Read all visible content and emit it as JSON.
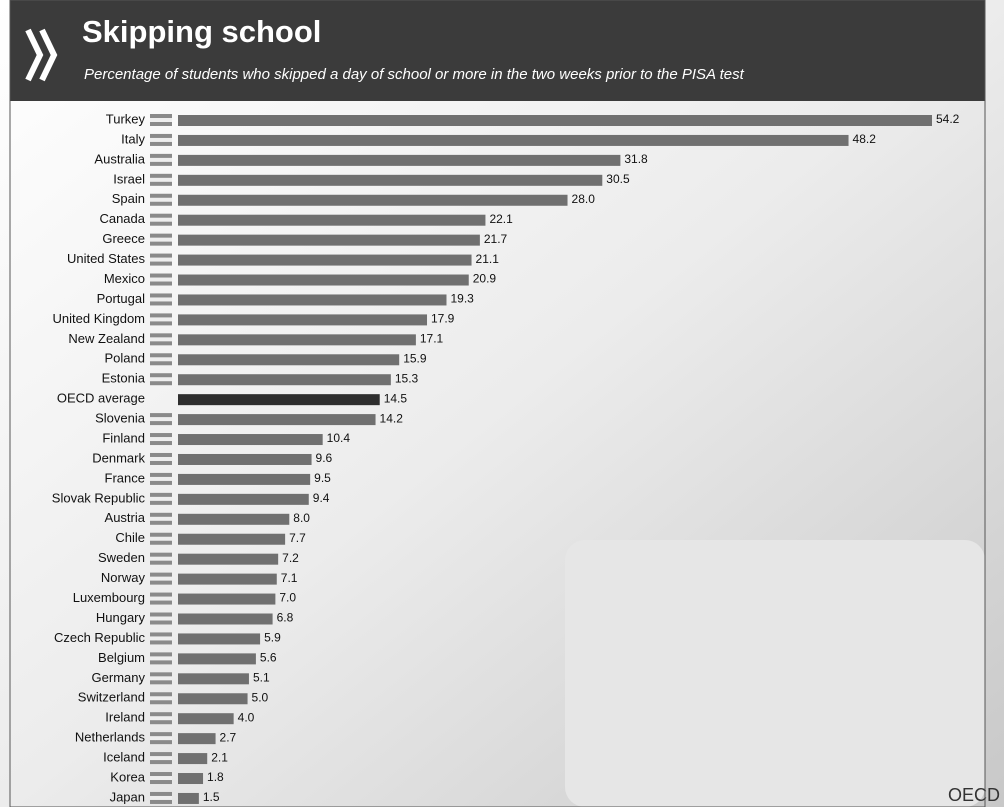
{
  "chart_data": {
    "type": "bar",
    "orientation": "horizontal",
    "title": "Skipping school",
    "subtitle": "Percentage of students who skipped a day of school or more in the two weeks prior to the PISA test",
    "source": "OECD",
    "categories": [
      "Turkey",
      "Italy",
      "Australia",
      "Israel",
      "Spain",
      "Canada",
      "Greece",
      "United States",
      "Mexico",
      "Portugal",
      "United Kingdom",
      "New Zealand",
      "Poland",
      "Estonia",
      "OECD average",
      "Slovenia",
      "Finland",
      "Denmark",
      "France",
      "Slovak Republic",
      "Austria",
      "Chile",
      "Sweden",
      "Norway",
      "Luxembourg",
      "Hungary",
      "Czech Republic",
      "Belgium",
      "Germany",
      "Switzerland",
      "Ireland",
      "Netherlands",
      "Iceland",
      "Korea",
      "Japan"
    ],
    "values": [
      54.2,
      48.2,
      31.8,
      30.5,
      28.0,
      22.1,
      21.7,
      21.1,
      20.9,
      19.3,
      17.9,
      17.1,
      15.9,
      15.3,
      14.5,
      14.2,
      10.4,
      9.6,
      9.5,
      9.4,
      8.0,
      7.7,
      7.2,
      7.1,
      7.0,
      6.8,
      5.9,
      5.6,
      5.1,
      5.0,
      4.0,
      2.7,
      2.1,
      1.8,
      1.5
    ],
    "value_labels": [
      "54.2",
      "48.2",
      "31.8",
      "30.5",
      "28.0",
      "22.1",
      "21.7",
      "21.1",
      "20.9",
      "19.3",
      "17.9",
      "17.1",
      "15.9",
      "15.3",
      "14.5",
      "14.2",
      "10.4",
      "9.6",
      "9.5",
      "9.4",
      "8.0",
      "7.7",
      "7.2",
      "7.1",
      "7.0",
      "6.8",
      "5.9",
      "5.6",
      "5.1",
      "5.0",
      "4.0",
      "2.7",
      "2.1",
      "1.8",
      "1.5"
    ],
    "color": "#707070",
    "highlight": {
      "category": "OECD average",
      "color": "#2e2e2e"
    }
  }
}
